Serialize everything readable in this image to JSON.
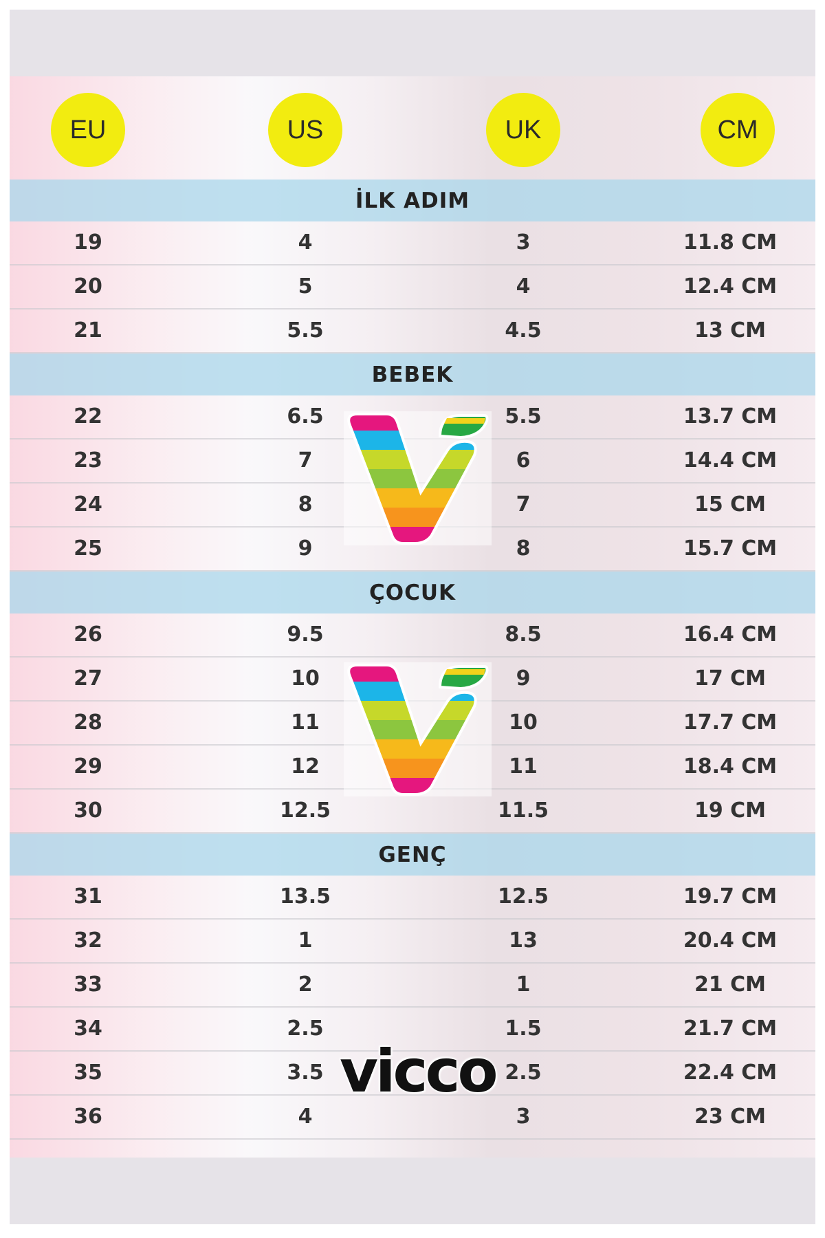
{
  "columns": [
    "EU",
    "US",
    "UK",
    "CM"
  ],
  "colors": {
    "header_circle": "#f2ec10",
    "band": "#aad7eb"
  },
  "sections": [
    {
      "title": "İLK ADIM",
      "rows": [
        [
          "19",
          "4",
          "3",
          "11.8 CM"
        ],
        [
          "20",
          "5",
          "4",
          "12.4 CM"
        ],
        [
          "21",
          "5.5",
          "4.5",
          "13 CM"
        ]
      ]
    },
    {
      "title": "BEBEK",
      "rows": [
        [
          "22",
          "6.5",
          "5.5",
          "13.7 CM"
        ],
        [
          "23",
          "7",
          "6",
          "14.4 CM"
        ],
        [
          "24",
          "8",
          "7",
          "15 CM"
        ],
        [
          "25",
          "9",
          "8",
          "15.7 CM"
        ]
      ]
    },
    {
      "title": "ÇOCUK",
      "rows": [
        [
          "26",
          "9.5",
          "8.5",
          "16.4 CM"
        ],
        [
          "27",
          "10",
          "9",
          "17 CM"
        ],
        [
          "28",
          "11",
          "10",
          "17.7 CM"
        ],
        [
          "29",
          "12",
          "11",
          "18.4 CM"
        ],
        [
          "30",
          "12.5",
          "11.5",
          "19 CM"
        ]
      ]
    },
    {
      "title": "GENÇ",
      "rows": [
        [
          "31",
          "13.5",
          "12.5",
          "19.7 CM"
        ],
        [
          "32",
          "1",
          "13",
          "20.4 CM"
        ],
        [
          "33",
          "2",
          "1",
          "21 CM"
        ],
        [
          "34",
          "2.5",
          "1.5",
          "21.7 CM"
        ],
        [
          "35",
          "3.5",
          "2.5",
          "22.4 CM"
        ],
        [
          "36",
          "4",
          "3",
          "23 CM"
        ]
      ]
    }
  ],
  "brand": {
    "name": "vicco",
    "logo_icon": "rainbow-v-logo"
  }
}
